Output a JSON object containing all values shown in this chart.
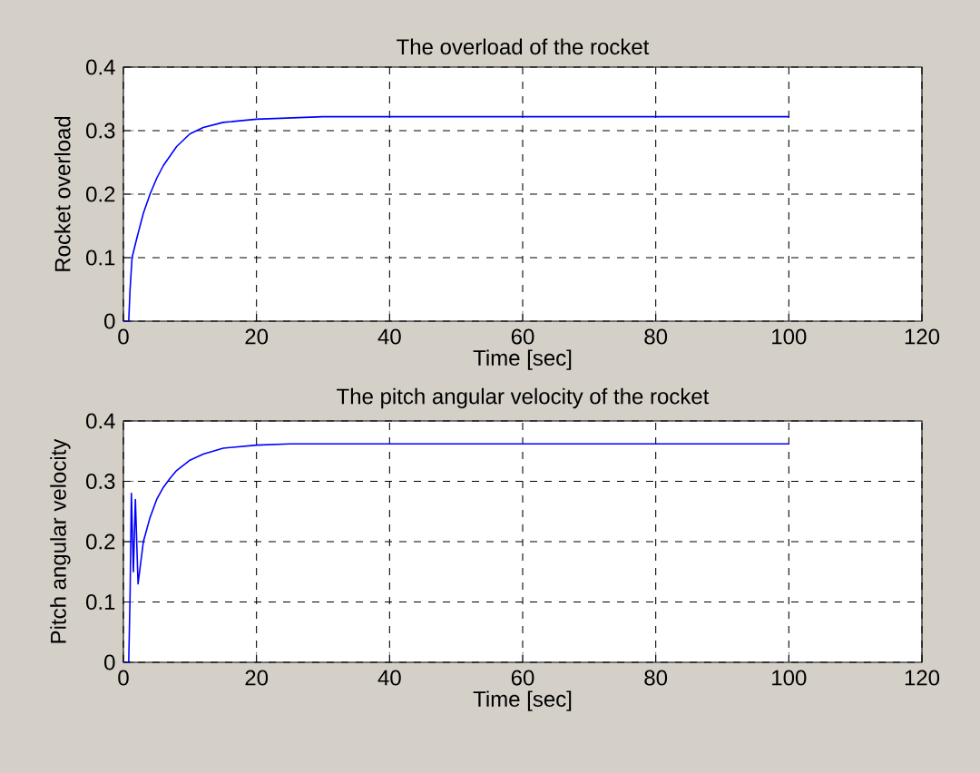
{
  "chart_data": [
    {
      "type": "line",
      "title": "The overload of the rocket",
      "xlabel": "Time [sec]",
      "ylabel": "Rocket overload",
      "color": "#0000ff",
      "x": [
        0,
        0.8,
        1.0,
        1.3,
        2,
        3,
        4,
        5,
        6,
        8,
        10,
        12,
        15,
        20,
        25,
        30,
        100
      ],
      "values": [
        0,
        0,
        0.05,
        0.1,
        0.13,
        0.17,
        0.2,
        0.225,
        0.245,
        0.275,
        0.295,
        0.305,
        0.313,
        0.318,
        0.32,
        0.322,
        0.322
      ],
      "xlim": [
        0,
        120
      ],
      "ylim": [
        0,
        0.4
      ],
      "xticks": [
        0,
        20,
        40,
        60,
        80,
        100,
        120
      ],
      "yticks": [
        0,
        0.1,
        0.2,
        0.3,
        0.4
      ],
      "grid": true
    },
    {
      "type": "line",
      "title": "The pitch angular velocity of the rocket",
      "xlabel": "Time [sec]",
      "ylabel": "Pitch angular velocity",
      "color": "#0000ff",
      "x": [
        0,
        0.8,
        1.0,
        1.2,
        1.5,
        1.8,
        2.2,
        3,
        4,
        5,
        6,
        7,
        8,
        10,
        12,
        15,
        20,
        25,
        100
      ],
      "values": [
        0,
        0,
        0.11,
        0.28,
        0.15,
        0.27,
        0.13,
        0.2,
        0.24,
        0.27,
        0.29,
        0.305,
        0.318,
        0.335,
        0.345,
        0.355,
        0.36,
        0.362,
        0.362
      ],
      "xlim": [
        0,
        120
      ],
      "ylim": [
        0,
        0.4
      ],
      "xticks": [
        0,
        20,
        40,
        60,
        80,
        100,
        120
      ],
      "yticks": [
        0,
        0.1,
        0.2,
        0.3,
        0.4
      ],
      "grid": true
    }
  ]
}
